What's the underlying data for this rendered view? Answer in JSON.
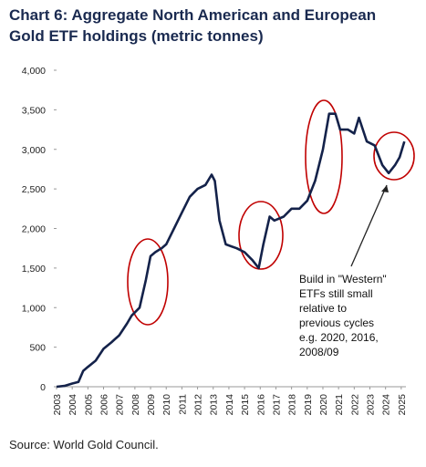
{
  "chart_data": {
    "type": "line",
    "title": [
      "Chart 6: Aggregate North American and European",
      "Gold ETF holdings (metric tonnes)"
    ],
    "source": "Source: World Gold Council.",
    "annotation": [
      "Build in \"Western\"",
      "ETFs still small",
      "relative to",
      "previous cycles",
      "e.g. 2020, 2016,",
      "2008/09"
    ],
    "xlim": [
      2003,
      2025.3
    ],
    "xticks": [
      2003,
      2004,
      2005,
      2006,
      2007,
      2008,
      2009,
      2010,
      2011,
      2012,
      2013,
      2014,
      2015,
      2016,
      2017,
      2018,
      2019,
      2020,
      2021,
      2022,
      2023,
      2024,
      2025
    ],
    "ylim": [
      0,
      4000
    ],
    "yticks": [
      0,
      500,
      {
        "value": 1000,
        "label": "1,000"
      },
      {
        "value": 1500,
        "label": "1,500"
      },
      {
        "value": 2000,
        "label": "2,000"
      },
      {
        "value": 2500,
        "label": "2,500"
      },
      {
        "value": 3000,
        "label": "3,000"
      },
      {
        "value": 3500,
        "label": "3,500"
      },
      {
        "value": 4000,
        "label": "4,000"
      }
    ],
    "series": [
      {
        "color": "#14224a",
        "x": [
          2003.0,
          2003.5,
          2004.0,
          2004.4,
          2004.7,
          2005.0,
          2005.5,
          2006.0,
          2006.5,
          2007.0,
          2007.5,
          2007.8,
          2008.3,
          2008.7,
          2009.0,
          2009.3,
          2009.7,
          2010.0,
          2010.5,
          2011.0,
          2011.5,
          2012.0,
          2012.5,
          2012.9,
          2013.1,
          2013.4,
          2013.8,
          2014.5,
          2015.0,
          2015.5,
          2015.9,
          2016.2,
          2016.6,
          2016.9,
          2017.5,
          2018.0,
          2018.5,
          2019.0,
          2019.5,
          2020.0,
          2020.4,
          2020.8,
          2021.1,
          2021.6,
          2022.0,
          2022.3,
          2022.8,
          2023.3,
          2023.8,
          2024.2,
          2024.6,
          2024.9,
          2025.2
        ],
        "values": [
          0,
          10,
          40,
          60,
          200,
          250,
          330,
          480,
          560,
          650,
          800,
          900,
          1000,
          1350,
          1650,
          1700,
          1750,
          1800,
          2000,
          2200,
          2400,
          2500,
          2550,
          2680,
          2600,
          2100,
          1800,
          1750,
          1700,
          1600,
          1500,
          1800,
          2150,
          2100,
          2150,
          2250,
          2250,
          2350,
          2600,
          3000,
          3450,
          3450,
          3250,
          3250,
          3200,
          3400,
          3100,
          3050,
          2800,
          2700,
          2800,
          2900,
          3100
        ]
      }
    ]
  }
}
